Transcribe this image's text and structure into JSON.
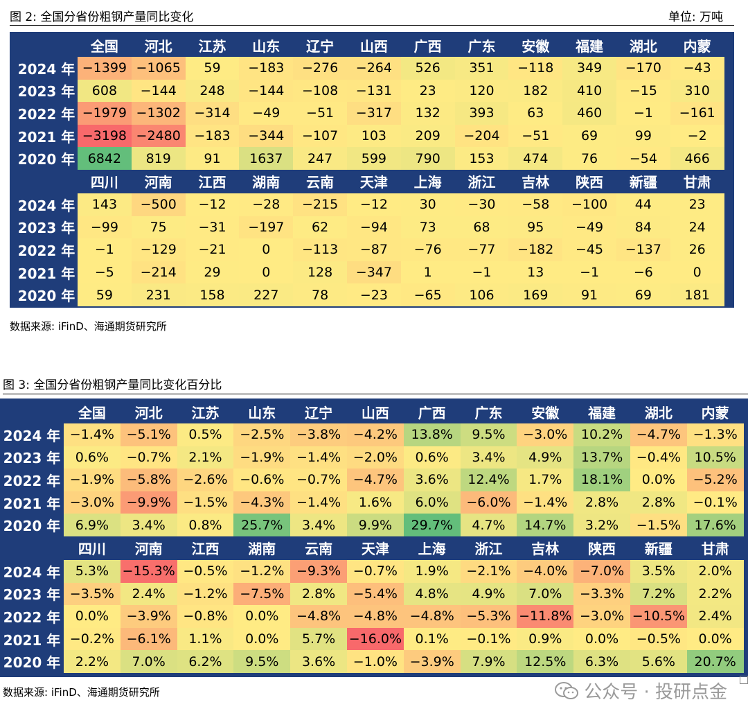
{
  "fig1": {
    "title": "图 2: 全国分省份粗钢产量同比变化",
    "unit": "单位: 万吨",
    "source": "数据来源: iFinD、海通期货研究所"
  },
  "fig2": {
    "title": "图 3: 全国分省份粗钢产量同比变化百分比",
    "source": "数据来源: iFinD、海通期货研究所"
  },
  "watermark": "公众号 · 投研点金",
  "chart_data": [
    {
      "type": "heatmap",
      "title": "全国分省份粗钢产量同比变化",
      "unit": "万吨",
      "row_labels": [
        "2024 年",
        "2023 年",
        "2022 年",
        "2021 年",
        "2020 年"
      ],
      "blocks": [
        {
          "provinces": [
            "全国",
            "河北",
            "江苏",
            "山东",
            "辽宁",
            "山西",
            "广西",
            "广东",
            "安徽",
            "福建",
            "湖北",
            "内蒙"
          ],
          "values": [
            [
              -1399,
              -1065,
              59,
              -183,
              -276,
              -264,
              526,
              351,
              -118,
              349,
              -170,
              -43
            ],
            [
              608,
              -144,
              248,
              -144,
              -108,
              -131,
              23,
              120,
              182,
              410,
              -15,
              310
            ],
            [
              -1979,
              -1302,
              -314,
              -49,
              -51,
              -317,
              132,
              393,
              63,
              460,
              -1,
              -161
            ],
            [
              -3198,
              -2480,
              -183,
              -344,
              -107,
              103,
              209,
              -204,
              -51,
              69,
              99,
              -2
            ],
            [
              6842,
              819,
              91,
              1637,
              247,
              599,
              790,
              153,
              474,
              76,
              -54,
              466
            ]
          ]
        },
        {
          "provinces": [
            "四川",
            "河南",
            "江西",
            "湖南",
            "云南",
            "天津",
            "上海",
            "浙江",
            "吉林",
            "陕西",
            "新疆",
            "甘肃"
          ],
          "values": [
            [
              143,
              -500,
              -12,
              -28,
              -215,
              -12,
              30,
              -30,
              -58,
              -100,
              44,
              23
            ],
            [
              -99,
              75,
              -31,
              -197,
              62,
              -94,
              73,
              68,
              95,
              -49,
              84,
              24
            ],
            [
              -1,
              -129,
              -21,
              0,
              -113,
              -87,
              -76,
              -77,
              -182,
              -45,
              -137,
              26
            ],
            [
              -5,
              -214,
              29,
              0,
              128,
              -347,
              1,
              -1,
              13,
              -1,
              -6,
              0
            ],
            [
              59,
              231,
              158,
              227,
              78,
              -23,
              -65,
              106,
              169,
              91,
              69,
              181
            ]
          ]
        }
      ],
      "colors": {
        "low": "#f8696b",
        "mid": "#ffeb84",
        "high": "#63be7b"
      }
    },
    {
      "type": "heatmap",
      "title": "全国分省份粗钢产量同比变化百分比",
      "unit": "%",
      "row_labels": [
        "2024 年",
        "2023 年",
        "2022 年",
        "2021 年",
        "2020 年"
      ],
      "blocks": [
        {
          "provinces": [
            "全国",
            "河北",
            "江苏",
            "山东",
            "辽宁",
            "山西",
            "广西",
            "广东",
            "安徽",
            "福建",
            "湖北",
            "内蒙"
          ],
          "values": [
            [
              -1.4,
              -5.1,
              0.5,
              -2.5,
              -3.8,
              -4.2,
              13.8,
              9.5,
              -3.0,
              10.2,
              -4.7,
              -1.3
            ],
            [
              0.6,
              -0.7,
              2.1,
              -1.9,
              -1.4,
              -2.0,
              0.6,
              3.4,
              4.9,
              13.7,
              -0.4,
              10.5
            ],
            [
              -1.9,
              -5.8,
              -2.6,
              -0.6,
              -0.7,
              -4.7,
              3.6,
              12.4,
              1.7,
              18.1,
              0.0,
              -5.2
            ],
            [
              -3.0,
              -9.9,
              -1.5,
              -4.3,
              -1.4,
              1.6,
              6.0,
              -6.0,
              -1.4,
              2.8,
              2.8,
              -0.1
            ],
            [
              6.9,
              3.4,
              0.8,
              25.7,
              3.4,
              9.9,
              29.7,
              4.7,
              14.7,
              3.2,
              -1.5,
              17.6
            ]
          ]
        },
        {
          "provinces": [
            "四川",
            "河南",
            "江西",
            "湖南",
            "云南",
            "天津",
            "上海",
            "浙江",
            "吉林",
            "陕西",
            "新疆",
            "甘肃"
          ],
          "values": [
            [
              5.3,
              -15.3,
              -0.5,
              -1.2,
              -9.3,
              -0.7,
              1.9,
              -2.1,
              -4.0,
              -7.0,
              3.5,
              2.0
            ],
            [
              -3.5,
              2.4,
              -1.2,
              -7.5,
              2.8,
              -5.4,
              4.8,
              4.9,
              7.0,
              -3.3,
              7.2,
              2.2
            ],
            [
              0.0,
              -3.9,
              -0.8,
              0.0,
              -4.8,
              -4.8,
              -4.8,
              -5.3,
              -11.8,
              -3.0,
              -10.5,
              2.4
            ],
            [
              -0.2,
              -6.1,
              1.1,
              0.0,
              5.7,
              -16.0,
              0.1,
              -0.1,
              0.9,
              0.0,
              -0.5,
              0.0
            ],
            [
              2.2,
              7.0,
              6.2,
              9.5,
              3.6,
              -1.0,
              -3.9,
              7.9,
              12.5,
              6.3,
              5.6,
              20.7
            ]
          ]
        }
      ],
      "colors": {
        "low": "#f8696b",
        "mid": "#ffeb84",
        "high": "#63be7b"
      }
    }
  ]
}
